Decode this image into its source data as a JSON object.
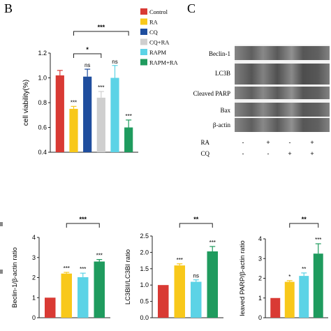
{
  "panel_labels": {
    "b": "B",
    "c": "C"
  },
  "colors": {
    "control": "#d93a34",
    "ra": "#f8c81a",
    "cq": "#1f4e9e",
    "cq_ra": "#cfcfcf",
    "rapm": "#5cd3e6",
    "rapm_ra": "#1f9b5e"
  },
  "legend": [
    "Control",
    "RA",
    "CQ",
    "CQ+RA",
    "RAPM",
    "RAPM+RA"
  ],
  "blot": {
    "rows": [
      "Beclin-1",
      "LC3B",
      "Cleaved PARP",
      "Bax",
      "β-actin"
    ],
    "conditions": [
      {
        "name": "RA",
        "marks": [
          "-",
          "+",
          "-",
          "+"
        ]
      },
      {
        "name": "CQ",
        "marks": [
          "-",
          "-",
          "+",
          "+"
        ]
      }
    ]
  },
  "chart_data": [
    {
      "type": "bar",
      "ylabel": "cell viability(%)",
      "categories": [
        "Control",
        "RA",
        "CQ",
        "CQ+RA",
        "RAPM",
        "RAPM+RA"
      ],
      "values": [
        1.02,
        0.75,
        1.01,
        0.84,
        1.0,
        0.6
      ],
      "errors": [
        0.04,
        0.02,
        0.06,
        0.05,
        0.1,
        0.06
      ],
      "labels": [
        "",
        "***",
        "ns",
        "***",
        "ns",
        "***"
      ],
      "ylim": [
        0.4,
        1.2
      ],
      "yticks": [
        "0.4",
        "0.6",
        "0.8",
        "1.0",
        "1.2"
      ],
      "brackets": [
        {
          "from": 1,
          "to": 3,
          "label": "*"
        },
        {
          "from": 1,
          "to": 5,
          "label": "***"
        }
      ]
    },
    {
      "type": "bar",
      "ylabel": "Beclin-1/β-actin ratio",
      "categories": [
        "Control",
        "RA",
        "CQ",
        "CQ+RA"
      ],
      "values": [
        1.0,
        2.2,
        2.02,
        2.8
      ],
      "errors": [
        0,
        0.06,
        0.2,
        0.1
      ],
      "labels": [
        "",
        "***",
        "***",
        "***"
      ],
      "ylim": [
        0,
        4
      ],
      "yticks": [
        "0",
        "1",
        "2",
        "3",
        "4"
      ],
      "brackets": [
        {
          "from": 1,
          "to": 3,
          "label": "***"
        }
      ]
    },
    {
      "type": "bar",
      "ylabel": "LC3BII/LC3BI ratio",
      "categories": [
        "Control",
        "RA",
        "CQ",
        "CQ+RA"
      ],
      "values": [
        1.0,
        1.6,
        1.1,
        2.03
      ],
      "errors": [
        0,
        0.05,
        0.06,
        0.15
      ],
      "labels": [
        "",
        "***",
        "ns",
        "***"
      ],
      "ylim": [
        0,
        2.5
      ],
      "yticks": [
        "0.0",
        "0.5",
        "1.0",
        "1.5",
        "2.0",
        "2.5"
      ],
      "brackets": [
        {
          "from": 1,
          "to": 3,
          "label": "**"
        }
      ]
    },
    {
      "type": "bar",
      "ylabel": "leaved PARP/β-actin ratio",
      "categories": [
        "Control",
        "RA",
        "CQ",
        "CQ+RA"
      ],
      "values": [
        1.0,
        1.82,
        2.12,
        3.25
      ],
      "errors": [
        0,
        0.06,
        0.15,
        0.5
      ],
      "labels": [
        "",
        "*",
        "**",
        "***"
      ],
      "ylim": [
        0,
        4
      ],
      "yticks": [
        "0",
        "1",
        "2",
        "3",
        "4"
      ],
      "brackets": [
        {
          "from": 1,
          "to": 3,
          "label": "**"
        }
      ]
    }
  ]
}
